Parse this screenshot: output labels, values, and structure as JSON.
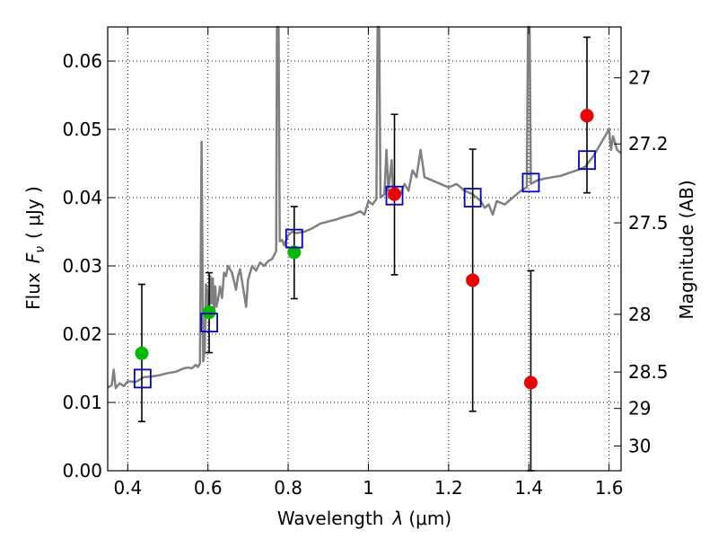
{
  "chart_data": {
    "type": "scatter",
    "xlabel_text": "Wavelength",
    "xlabel_symbol": "λ",
    "xlabel_unit": "(μm)",
    "ylabel_text": "Flux",
    "ylabel_symbol": "F",
    "ylabel_subscript": "ν",
    "ylabel_unit": "( μJy )",
    "y2label": "Magnitude (AB)",
    "xlim": [
      0.35,
      1.63
    ],
    "ylim": [
      0.0,
      0.065
    ],
    "x_ticks": [
      0.4,
      0.6,
      0.8,
      1.0,
      1.2,
      1.4,
      1.6
    ],
    "x_tick_labels": [
      "0.4",
      "0.6",
      "0.8",
      "1",
      "1.2",
      "1.4",
      "1.6"
    ],
    "y_ticks": [
      0.0,
      0.01,
      0.02,
      0.03,
      0.04,
      0.05,
      0.06
    ],
    "y_tick_labels": [
      "0.00",
      "0.01",
      "0.02",
      "0.03",
      "0.04",
      "0.05",
      "0.06"
    ],
    "y2_ticks": [
      27.0,
      27.2,
      27.5,
      28.0,
      28.5,
      29.0,
      30.0
    ],
    "y2_tick_labels": [
      "27",
      "27.2",
      "27.5",
      "28",
      "28.5",
      "29",
      "30"
    ],
    "mag_zero_point": 23.9,
    "colors": {
      "spectrum": "#808080",
      "green_points": "#00bb00",
      "red_points": "#ee0000",
      "model_squares": "#0000cc"
    },
    "series": [
      {
        "name": "model spectrum",
        "style": "line",
        "points": [
          [
            0.35,
            0.0122
          ],
          [
            0.36,
            0.0125
          ],
          [
            0.365,
            0.0148
          ],
          [
            0.37,
            0.0121
          ],
          [
            0.38,
            0.0128
          ],
          [
            0.39,
            0.0124
          ],
          [
            0.4,
            0.0131
          ],
          [
            0.42,
            0.013
          ],
          [
            0.44,
            0.0137
          ],
          [
            0.46,
            0.0138
          ],
          [
            0.48,
            0.014
          ],
          [
            0.5,
            0.0143
          ],
          [
            0.52,
            0.0145
          ],
          [
            0.54,
            0.015
          ],
          [
            0.55,
            0.0151
          ],
          [
            0.56,
            0.015
          ],
          [
            0.57,
            0.0155
          ],
          [
            0.575,
            0.0152
          ],
          [
            0.58,
            0.0157
          ],
          [
            0.584,
            0.0482
          ],
          [
            0.588,
            0.016
          ],
          [
            0.592,
            0.0175
          ],
          [
            0.595,
            0.0273
          ],
          [
            0.598,
            0.0265
          ],
          [
            0.6,
            0.0231
          ],
          [
            0.603,
            0.024
          ],
          [
            0.606,
            0.0285
          ],
          [
            0.609,
            0.0245
          ],
          [
            0.612,
            0.0282
          ],
          [
            0.615,
            0.023
          ],
          [
            0.618,
            0.027
          ],
          [
            0.621,
            0.024
          ],
          [
            0.625,
            0.025
          ],
          [
            0.63,
            0.027
          ],
          [
            0.635,
            0.0253
          ],
          [
            0.64,
            0.029
          ],
          [
            0.645,
            0.0285
          ],
          [
            0.65,
            0.03
          ],
          [
            0.66,
            0.029
          ],
          [
            0.67,
            0.0265
          ],
          [
            0.675,
            0.0285
          ],
          [
            0.68,
            0.0295
          ],
          [
            0.69,
            0.026
          ],
          [
            0.695,
            0.024
          ],
          [
            0.7,
            0.028
          ],
          [
            0.71,
            0.03
          ],
          [
            0.72,
            0.0293
          ],
          [
            0.73,
            0.0305
          ],
          [
            0.74,
            0.03
          ],
          [
            0.75,
            0.0307
          ],
          [
            0.76,
            0.031
          ],
          [
            0.77,
            0.0322
          ],
          [
            0.772,
            0.0665
          ],
          [
            0.776,
            0.0665
          ],
          [
            0.779,
            0.0336
          ],
          [
            0.785,
            0.0338
          ],
          [
            0.79,
            0.033
          ],
          [
            0.8,
            0.0345
          ],
          [
            0.81,
            0.035
          ],
          [
            0.82,
            0.0348
          ],
          [
            0.84,
            0.035
          ],
          [
            0.86,
            0.0355
          ],
          [
            0.88,
            0.0362
          ],
          [
            0.9,
            0.0365
          ],
          [
            0.92,
            0.0368
          ],
          [
            0.94,
            0.0372
          ],
          [
            0.96,
            0.0375
          ],
          [
            0.98,
            0.038
          ],
          [
            0.99,
            0.0375
          ],
          [
            1.0,
            0.0395
          ],
          [
            1.01,
            0.039
          ],
          [
            1.02,
            0.0398
          ],
          [
            1.023,
            0.0665
          ],
          [
            1.027,
            0.0665
          ],
          [
            1.03,
            0.04
          ],
          [
            1.04,
            0.0405
          ],
          [
            1.045,
            0.047
          ],
          [
            1.05,
            0.041
          ],
          [
            1.058,
            0.0455
          ],
          [
            1.062,
            0.04
          ],
          [
            1.07,
            0.0415
          ],
          [
            1.08,
            0.0405
          ],
          [
            1.09,
            0.042
          ],
          [
            1.1,
            0.041
          ],
          [
            1.11,
            0.044
          ],
          [
            1.12,
            0.043
          ],
          [
            1.13,
            0.047
          ],
          [
            1.14,
            0.043
          ],
          [
            1.16,
            0.0425
          ],
          [
            1.18,
            0.042
          ],
          [
            1.2,
            0.0415
          ],
          [
            1.22,
            0.042
          ],
          [
            1.24,
            0.041
          ],
          [
            1.26,
            0.0405
          ],
          [
            1.28,
            0.0395
          ],
          [
            1.29,
            0.0385
          ],
          [
            1.3,
            0.039
          ],
          [
            1.31,
            0.0375
          ],
          [
            1.32,
            0.0395
          ],
          [
            1.34,
            0.039
          ],
          [
            1.36,
            0.04
          ],
          [
            1.38,
            0.041
          ],
          [
            1.395,
            0.0415
          ],
          [
            1.398,
            0.0665
          ],
          [
            1.402,
            0.0665
          ],
          [
            1.405,
            0.042
          ],
          [
            1.42,
            0.0425
          ],
          [
            1.44,
            0.0428
          ],
          [
            1.46,
            0.043
          ],
          [
            1.48,
            0.0432
          ],
          [
            1.5,
            0.0436
          ],
          [
            1.52,
            0.044
          ],
          [
            1.54,
            0.0445
          ],
          [
            1.56,
            0.046
          ],
          [
            1.57,
            0.047
          ],
          [
            1.58,
            0.048
          ],
          [
            1.59,
            0.049
          ],
          [
            1.6,
            0.05
          ],
          [
            1.605,
            0.047
          ],
          [
            1.61,
            0.049
          ],
          [
            1.62,
            0.047
          ],
          [
            1.63,
            0.0465
          ]
        ]
      },
      {
        "name": "observed (green)",
        "style": "point",
        "x": [
          0.435,
          0.603,
          0.815
        ],
        "y": [
          0.0172,
          0.0232,
          0.032
        ],
        "err_low": [
          0.0072,
          0.0173,
          0.0252
        ],
        "err_high": [
          0.0273,
          0.029,
          0.0387
        ]
      },
      {
        "name": "observed (red)",
        "style": "point",
        "x": [
          1.065,
          1.26,
          1.405,
          1.545
        ],
        "y": [
          0.0405,
          0.0279,
          0.0129,
          0.052
        ],
        "err_low": [
          0.0287,
          0.0087,
          0.0,
          0.0407
        ],
        "err_high": [
          0.0522,
          0.0471,
          0.0293,
          0.0635
        ]
      },
      {
        "name": "model photometry",
        "style": "open-square",
        "x": [
          0.437,
          0.603,
          0.815,
          1.065,
          1.26,
          1.405,
          1.545
        ],
        "y": [
          0.0135,
          0.0217,
          0.034,
          0.0403,
          0.04,
          0.0422,
          0.0455
        ]
      }
    ]
  }
}
